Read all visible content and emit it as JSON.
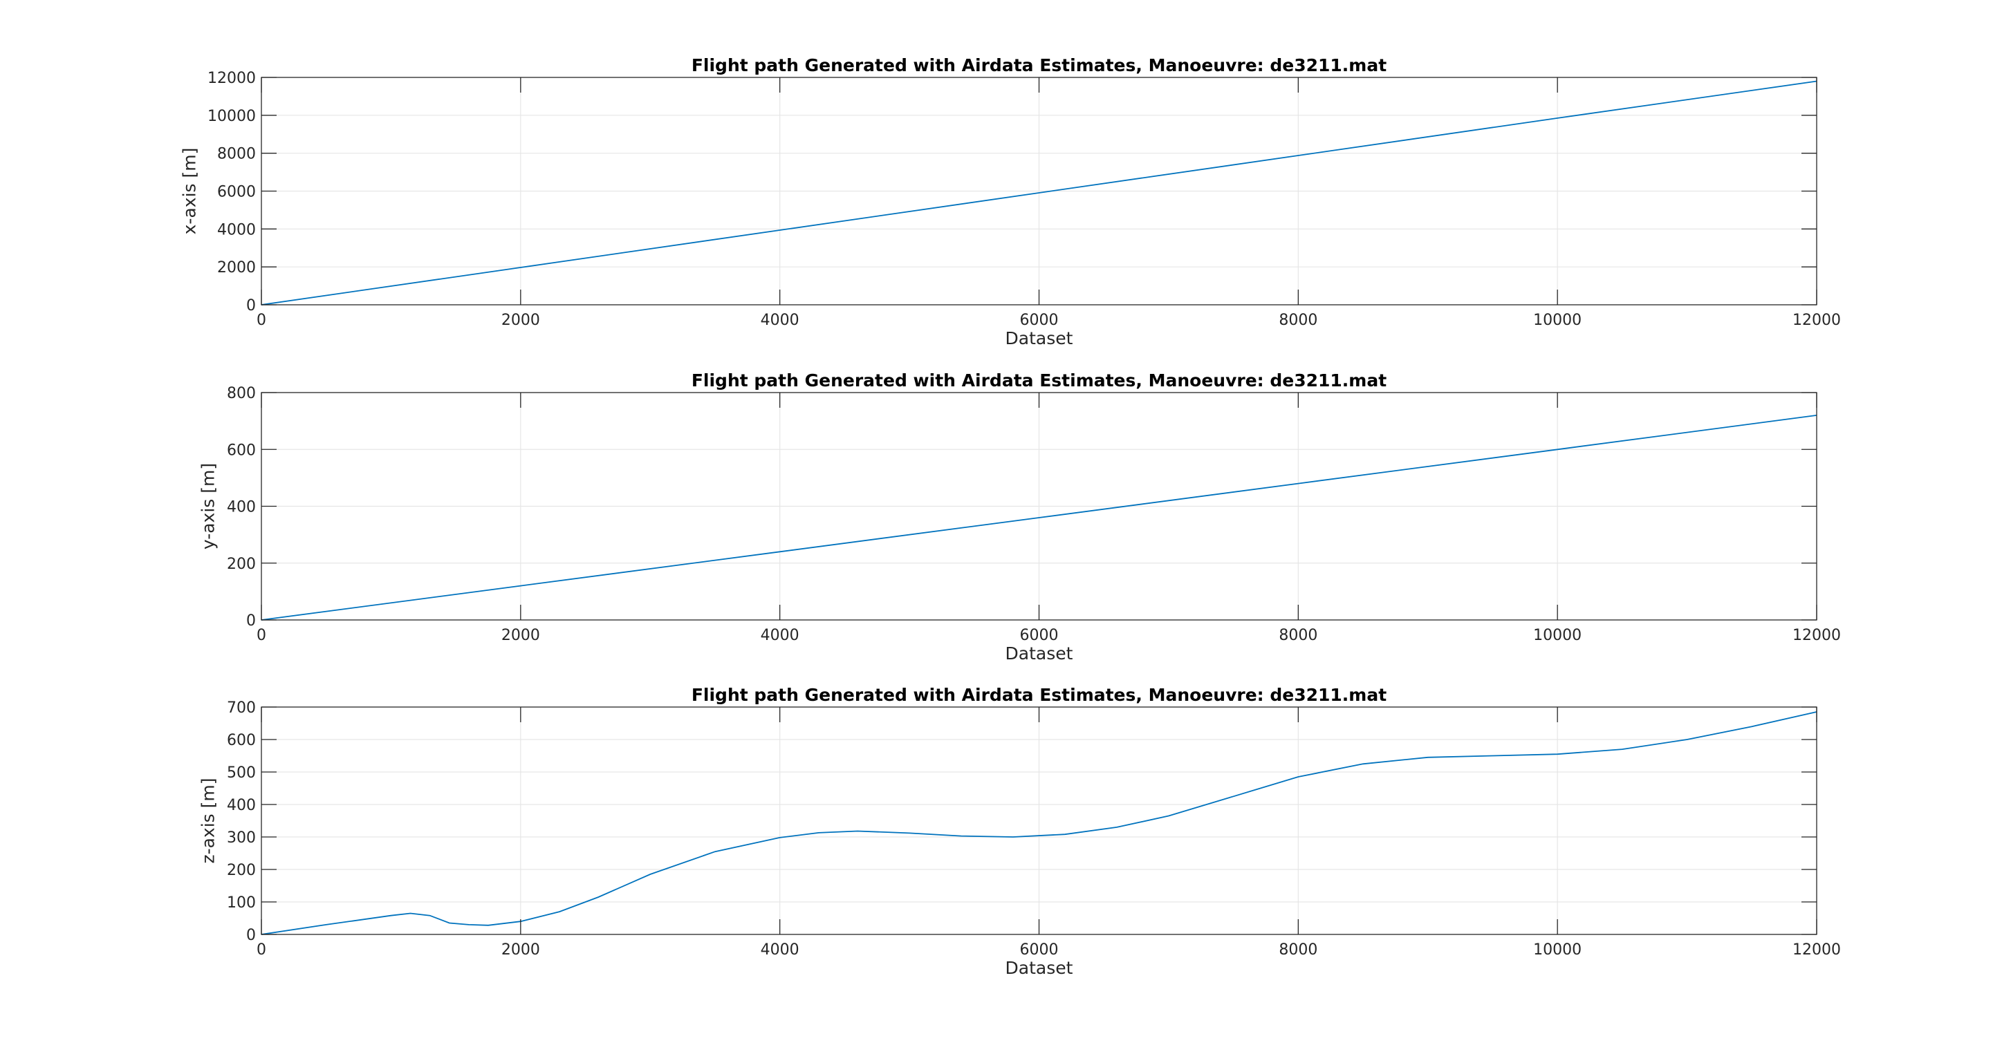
{
  "chart_data": [
    {
      "type": "line",
      "title": "Flight path Generated with Airdata Estimates, Manoeuvre: de3211.mat",
      "xlabel": "Dataset",
      "ylabel": "x-axis [m]",
      "xlim": [
        0,
        12000
      ],
      "ylim": [
        0,
        12000
      ],
      "xticks": [
        "0",
        "2000",
        "4000",
        "6000",
        "8000",
        "10000",
        "12000"
      ],
      "yticks": [
        "0",
        "2000",
        "4000",
        "6000",
        "8000",
        "10000",
        "12000"
      ],
      "grid": true,
      "line_color": "#0072BD",
      "series": [
        {
          "x": [
            0,
            2000,
            4000,
            6000,
            8000,
            10000,
            12000
          ],
          "y": [
            0,
            1970,
            3940,
            5910,
            7880,
            9850,
            11800
          ]
        }
      ]
    },
    {
      "type": "line",
      "title": "Flight path Generated with Airdata Estimates, Manoeuvre: de3211.mat",
      "xlabel": "Dataset",
      "ylabel": "y-axis [m]",
      "xlim": [
        0,
        12000
      ],
      "ylim": [
        0,
        800
      ],
      "xticks": [
        "0",
        "2000",
        "4000",
        "6000",
        "8000",
        "10000",
        "12000"
      ],
      "yticks": [
        "0",
        "200",
        "400",
        "600",
        "800"
      ],
      "grid": true,
      "line_color": "#0072BD",
      "series": [
        {
          "x": [
            0,
            2000,
            4000,
            6000,
            8000,
            10000,
            12000
          ],
          "y": [
            0,
            120,
            240,
            360,
            480,
            600,
            720
          ]
        }
      ]
    },
    {
      "type": "line",
      "title": "Flight path Generated with Airdata Estimates, Manoeuvre: de3211.mat",
      "xlabel": "Dataset",
      "ylabel": "z-axis [m]",
      "xlim": [
        0,
        12000
      ],
      "ylim": [
        0,
        700
      ],
      "xticks": [
        "0",
        "2000",
        "4000",
        "6000",
        "8000",
        "10000",
        "12000"
      ],
      "yticks": [
        "0",
        "100",
        "200",
        "300",
        "400",
        "500",
        "600",
        "700"
      ],
      "grid": true,
      "line_color": "#0072BD",
      "series": [
        {
          "x": [
            0,
            500,
            1000,
            1150,
            1300,
            1450,
            1600,
            1750,
            2000,
            2300,
            2600,
            3000,
            3500,
            4000,
            4300,
            4600,
            5000,
            5400,
            5800,
            6200,
            6600,
            7000,
            7500,
            8000,
            8500,
            9000,
            9500,
            10000,
            10500,
            11000,
            11500,
            12000
          ],
          "y": [
            0,
            30,
            58,
            65,
            58,
            35,
            30,
            28,
            40,
            70,
            115,
            185,
            255,
            298,
            313,
            318,
            312,
            303,
            300,
            308,
            330,
            365,
            425,
            485,
            525,
            545,
            550,
            555,
            570,
            600,
            640,
            685
          ]
        }
      ]
    }
  ]
}
